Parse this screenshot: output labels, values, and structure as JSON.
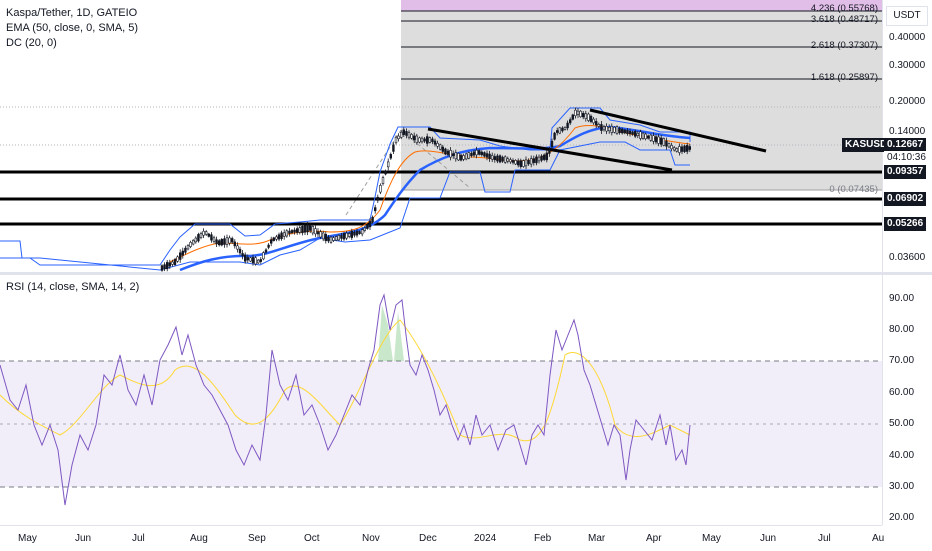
{
  "legend": {
    "symbol": "Kaspa/Tether, 1D, GATEIO",
    "ema": "EMA (50, close, 0, SMA, 5)",
    "dc": "DC (20, 0)"
  },
  "rsi_legend": "RSI (14, close, SMA, 14, 2)",
  "currency": "USDT",
  "price_axis_labels": [
    "0.40000",
    "0.30000",
    "0.20000",
    "0.14000",
    "0.03600"
  ],
  "fib_levels": [
    {
      "label": "4.236 (0.55768)"
    },
    {
      "label": "3.618 (0.48717)"
    },
    {
      "label": "2.618 (0.37307)"
    },
    {
      "label": "1.618 (0.25897)"
    },
    {
      "label": "0 (0.07435)"
    }
  ],
  "price_tags": {
    "symbol": "KASUSDT",
    "last_price": "0.12667",
    "countdown": "04:10:36",
    "level_1": "0.09357",
    "level_2": "0.06902",
    "level_3": "0.05266"
  },
  "rsi_axis_labels": [
    "90.00",
    "80.00",
    "70.00",
    "60.00",
    "50.00",
    "40.00",
    "30.00",
    "20.00"
  ],
  "time_axis_labels": [
    "May",
    "Jun",
    "Jul",
    "Aug",
    "Sep",
    "Oct",
    "Nov",
    "Dec",
    "2024",
    "Feb",
    "Mar",
    "Apr",
    "May",
    "Jun",
    "Jul",
    "Au"
  ],
  "colors": {
    "ema": "#2962ff",
    "donchian": "#2962ff",
    "basis": "#ff6d00",
    "rsi": "#7e57c2",
    "rsi_ma": "#fdd835",
    "fib_zone": "#9e9e9e",
    "fib_top": "#e1bee7",
    "rsi_band": "#ede7f6"
  },
  "chart_data": {
    "type": "candlestick",
    "series": [
      {
        "name": "KASUSDT",
        "values": [
          0.032,
          0.034,
          0.045,
          0.044,
          0.036,
          0.038,
          0.045,
          0.048,
          0.046,
          0.052,
          0.095,
          0.145,
          0.13,
          0.12,
          0.11,
          0.105,
          0.115,
          0.175,
          0.155,
          0.13,
          0.12,
          0.12667
        ]
      },
      {
        "name": "RSI",
        "values": [
          52,
          45,
          27,
          58,
          76,
          48,
          72,
          45,
          65,
          43,
          90,
          88,
          72,
          55,
          47,
          40,
          45,
          82,
          70,
          46,
          50,
          48
        ]
      }
    ],
    "horizontal_levels": [
      0.09357,
      0.06902,
      0.05266
    ],
    "rsi_levels": [
      70,
      50,
      30
    ]
  }
}
